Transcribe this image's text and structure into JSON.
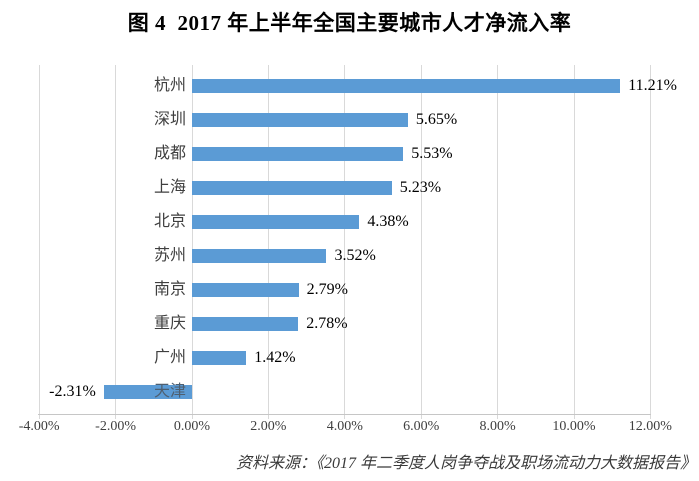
{
  "figure_title": "图 4  2017 年上半年全国主要城市人才净流入率",
  "source_note": "资料来源：《2017 年二季度人岗争夺战及职场流动力大数据报告》",
  "colors": {
    "bar": "#5B9BD5",
    "gridline": "#D9D9D9",
    "axis_line": "#C6C6C6",
    "title_text": "#000000",
    "label_text": "#3f3f3f"
  },
  "chart_data": {
    "type": "bar",
    "orientation": "horizontal",
    "title": "图 4  2017 年上半年全国主要城市人才净流入率",
    "categories": [
      "杭州",
      "深圳",
      "成都",
      "上海",
      "北京",
      "苏州",
      "南京",
      "重庆",
      "广州",
      "天津"
    ],
    "values": [
      11.21,
      5.65,
      5.53,
      5.23,
      4.38,
      3.52,
      2.79,
      2.78,
      1.42,
      -2.31
    ],
    "value_labels": [
      "11.21%",
      "5.65%",
      "5.53%",
      "5.23%",
      "4.38%",
      "3.52%",
      "2.79%",
      "2.78%",
      "1.42%",
      "-2.31%"
    ],
    "xlabel": "",
    "ylabel": "",
    "xlim": [
      -4,
      12
    ],
    "x_tick_values": [
      -4,
      -2,
      0,
      2,
      4,
      6,
      8,
      10,
      12
    ],
    "x_ticks": [
      "-4.00%",
      "-2.00%",
      "0.00%",
      "2.00%",
      "4.00%",
      "6.00%",
      "8.00%",
      "10.00%",
      "12.00%"
    ],
    "grid": true,
    "legend": "none"
  }
}
